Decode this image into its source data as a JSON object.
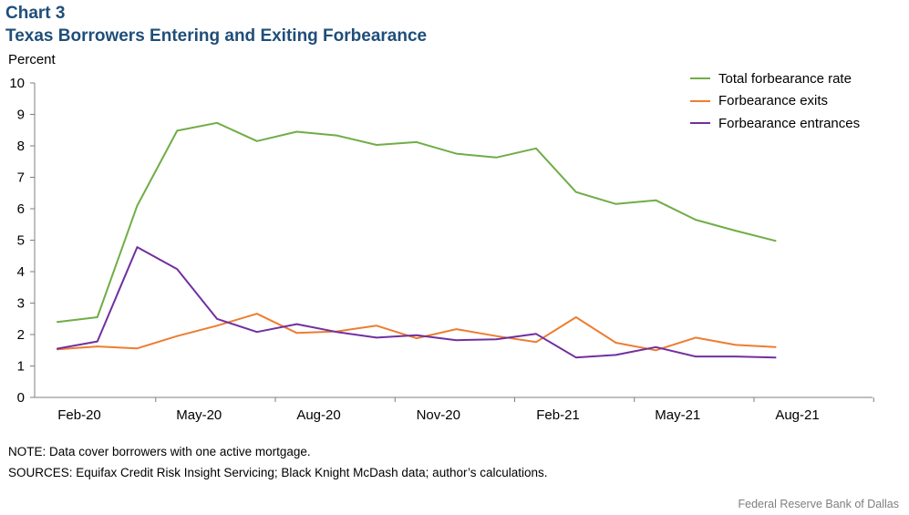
{
  "header": {
    "chart_number": "Chart 3",
    "title": "Texas Borrowers Entering and Exiting Forbearance"
  },
  "chart_data": {
    "type": "line",
    "title": "Texas Borrowers Entering and Exiting Forbearance",
    "ylabel": "Percent",
    "xlabel": "",
    "ylim": [
      0,
      10
    ],
    "yticks": [
      0,
      1,
      2,
      3,
      4,
      5,
      6,
      7,
      8,
      9,
      10
    ],
    "x": [
      "Feb-20",
      "Mar-20",
      "Apr-20",
      "May-20",
      "Jun-20",
      "Jul-20",
      "Aug-20",
      "Sep-20",
      "Oct-20",
      "Nov-20",
      "Dec-20",
      "Jan-21",
      "Feb-21",
      "Mar-21",
      "Apr-21",
      "May-21",
      "Jun-21",
      "Jul-21",
      "Aug-21"
    ],
    "xtick_labels": [
      "Feb-20",
      "May-20",
      "Aug-20",
      "Nov-20",
      "Feb-21",
      "May-21",
      "Aug-21"
    ],
    "xtick_every": 3,
    "grid": false,
    "legend_position": "top-right",
    "series": [
      {
        "name": "Total forbearance rate",
        "color": "#70ad47",
        "values": [
          2.4,
          2.55,
          6.1,
          8.48,
          8.73,
          8.15,
          8.45,
          8.33,
          8.03,
          8.12,
          7.75,
          7.63,
          7.92,
          6.53,
          6.15,
          6.27,
          5.65,
          5.3,
          4.98
        ]
      },
      {
        "name": "Forbearance exits",
        "color": "#ed7d31",
        "values": [
          1.53,
          1.62,
          1.56,
          1.95,
          2.28,
          2.66,
          2.05,
          2.1,
          2.28,
          1.88,
          2.17,
          1.95,
          1.76,
          2.55,
          1.74,
          1.5,
          1.9,
          1.67,
          1.6
        ]
      },
      {
        "name": "Forbearance entrances",
        "color": "#7030a0",
        "values": [
          1.55,
          1.78,
          4.78,
          4.08,
          2.5,
          2.08,
          2.33,
          2.08,
          1.9,
          1.98,
          1.82,
          1.85,
          2.02,
          1.27,
          1.35,
          1.6,
          1.3,
          1.3,
          1.27
        ]
      }
    ]
  },
  "footnotes": {
    "note": "NOTE: Data cover borrowers with one active mortgage.",
    "sources": "SOURCES: Equifax Credit Risk Insight Servicing; Black Knight McDash data; author’s calculations.",
    "credit": "Federal Reserve Bank of Dallas"
  }
}
